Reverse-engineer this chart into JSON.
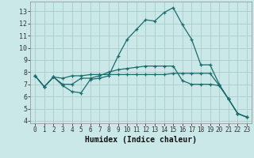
{
  "xlabel": "Humidex (Indice chaleur)",
  "bg_color": "#cbe8e8",
  "grid_color": "#aacccc",
  "line_color": "#1a6b6b",
  "xlim": [
    -0.5,
    23.5
  ],
  "ylim": [
    3.8,
    13.8
  ],
  "xticks": [
    0,
    1,
    2,
    3,
    4,
    5,
    6,
    7,
    8,
    9,
    10,
    11,
    12,
    13,
    14,
    15,
    16,
    17,
    18,
    19,
    20,
    21,
    22,
    23
  ],
  "yticks": [
    4,
    5,
    6,
    7,
    8,
    9,
    10,
    11,
    12,
    13
  ],
  "series": [
    [
      7.7,
      6.8,
      7.6,
      6.9,
      6.4,
      6.3,
      7.4,
      7.5,
      7.7,
      9.3,
      10.7,
      11.5,
      12.3,
      12.2,
      12.9,
      13.3,
      11.9,
      10.7,
      8.6,
      8.6,
      7.0,
      5.8,
      4.6,
      4.3
    ],
    [
      7.7,
      6.8,
      7.6,
      7.0,
      7.0,
      7.5,
      7.5,
      7.7,
      8.0,
      8.2,
      8.3,
      8.4,
      8.5,
      8.5,
      8.5,
      8.5,
      7.3,
      7.0,
      7.0,
      7.0,
      6.9,
      5.8,
      4.6,
      4.3
    ],
    [
      7.7,
      6.8,
      7.6,
      7.5,
      7.7,
      7.7,
      7.8,
      7.8,
      7.8,
      7.8,
      7.8,
      7.8,
      7.8,
      7.8,
      7.8,
      7.9,
      7.9,
      7.9,
      7.9,
      7.9,
      6.9,
      5.8,
      4.6,
      4.3
    ]
  ]
}
